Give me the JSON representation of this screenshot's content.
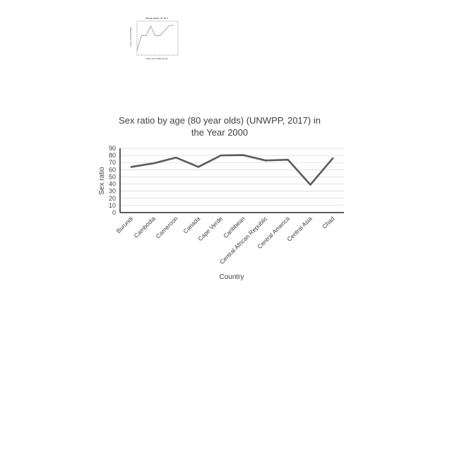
{
  "chart_data": [
    {
      "type": "line",
      "title": "Stock price of XLJ",
      "xlabel": "Days since 2022-10-01",
      "ylabel": "Price of stock (USD)",
      "x": [
        0,
        1,
        2,
        3,
        4,
        5,
        6,
        7,
        8
      ],
      "values": [
        1,
        4,
        4,
        6,
        4,
        4,
        5,
        6,
        6.2
      ],
      "xlim": [
        0,
        9
      ],
      "ylim": [
        0,
        7
      ],
      "color": "#7f93c9"
    },
    {
      "type": "line",
      "title_line1": "Sex ratio by age (80 year olds) (UNWPP, 2017) in",
      "title_line2": "the Year 2000",
      "xlabel": "Country",
      "ylabel": "Sex ratio",
      "categories": [
        "Burundi",
        "Cambodia",
        "Cameroon",
        "Canada",
        "Cape Verde",
        "Caribbean",
        "Central African Republic",
        "Central America",
        "Central Asia",
        "Chad"
      ],
      "values": [
        64,
        69,
        77,
        64,
        80,
        80.5,
        73,
        74,
        39,
        76
      ],
      "yticks": [
        "0",
        "10",
        "20",
        "30",
        "40",
        "50",
        "60",
        "70",
        "80",
        "90"
      ],
      "ylim": [
        0,
        90
      ],
      "grid": true,
      "color": "#595959"
    }
  ]
}
